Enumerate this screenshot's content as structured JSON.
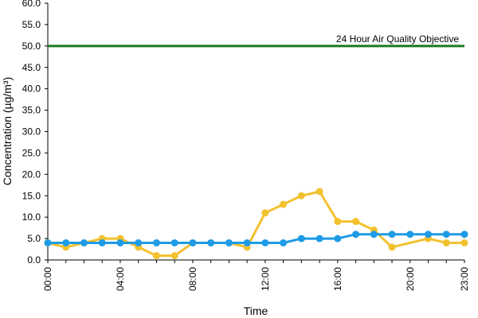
{
  "chart_data": {
    "type": "line",
    "title": "",
    "xlabel": "Time",
    "ylabel": "Concentration (µg/m³)",
    "ylim": [
      0,
      60
    ],
    "y_ticks": [
      "0.0",
      "5.0",
      "10.0",
      "15.0",
      "20.0",
      "25.0",
      "30.0",
      "35.0",
      "40.0",
      "45.0",
      "50.0",
      "55.0",
      "60.0"
    ],
    "x_ticks": [
      "00:00",
      "04:00",
      "08:00",
      "12:00",
      "16:00",
      "20:00",
      "23:00"
    ],
    "grid": false,
    "x": [
      "00:00",
      "01:00",
      "02:00",
      "03:00",
      "04:00",
      "05:00",
      "06:00",
      "07:00",
      "08:00",
      "09:00",
      "10:00",
      "11:00",
      "12:00",
      "13:00",
      "14:00",
      "15:00",
      "16:00",
      "17:00",
      "18:00",
      "19:00",
      "20:00",
      "21:00",
      "22:00",
      "23:00"
    ],
    "series": [
      {
        "color": "#F2C12E",
        "values": [
          4,
          3,
          4,
          5,
          5,
          3,
          1,
          1,
          4,
          4,
          4,
          3,
          11,
          13,
          15,
          16,
          9,
          9,
          7,
          3,
          null,
          5,
          4,
          4
        ]
      },
      {
        "color": "#1E9BE6",
        "values": [
          4,
          4,
          4,
          4,
          4,
          4,
          4,
          4,
          4,
          4,
          4,
          4,
          4,
          4,
          5,
          5,
          5,
          6,
          6,
          6,
          6,
          6,
          6,
          6
        ]
      }
    ],
    "reference_line": {
      "label": "24 Hour Air Quality Objective",
      "value": 50,
      "color": "#1E7A1E"
    }
  }
}
